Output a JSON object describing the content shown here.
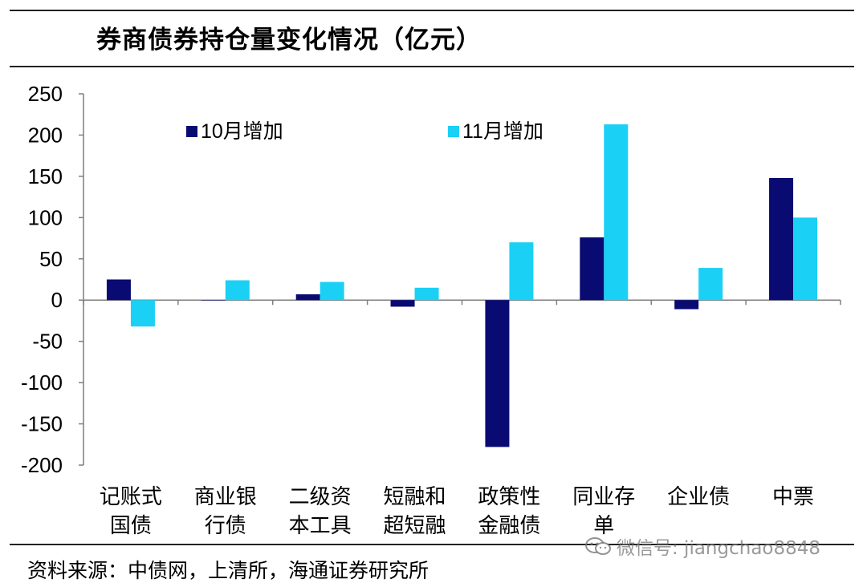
{
  "header": {
    "title": "券商债券持仓量变化情况（亿元）"
  },
  "footer": {
    "source": "资料来源：中债网，上清所，海通证券研究所"
  },
  "watermark": {
    "text": "微信号: jiangchao8848"
  },
  "colors": {
    "series_oct": "#0a0a73",
    "series_nov": "#1ad0f5",
    "axis": "#7f7f7f"
  },
  "chart_data": {
    "type": "bar",
    "title": "券商债券持仓量变化情况（亿元）",
    "categories": [
      [
        "记账式",
        "国债"
      ],
      [
        "商业银",
        "行债"
      ],
      [
        "二级资",
        "本工具"
      ],
      [
        "短融和",
        "超短融"
      ],
      [
        "政策性",
        "金融债"
      ],
      [
        "同业存",
        "单"
      ],
      [
        "企业债"
      ],
      [
        "中票"
      ]
    ],
    "series": [
      {
        "name": "10月增加",
        "values": [
          25,
          0,
          7,
          -8,
          -178,
          76,
          -11,
          148
        ]
      },
      {
        "name": "11月增加",
        "values": [
          -32,
          24,
          22,
          15,
          70,
          213,
          39,
          100
        ]
      }
    ],
    "ylim": [
      -200,
      250
    ],
    "yticks": [
      "250",
      "200",
      "150",
      "100",
      "50",
      "0",
      "-50",
      "-100",
      "-150",
      "-200"
    ],
    "xlabel": "",
    "ylabel": "",
    "legend": "top, inside plot"
  }
}
